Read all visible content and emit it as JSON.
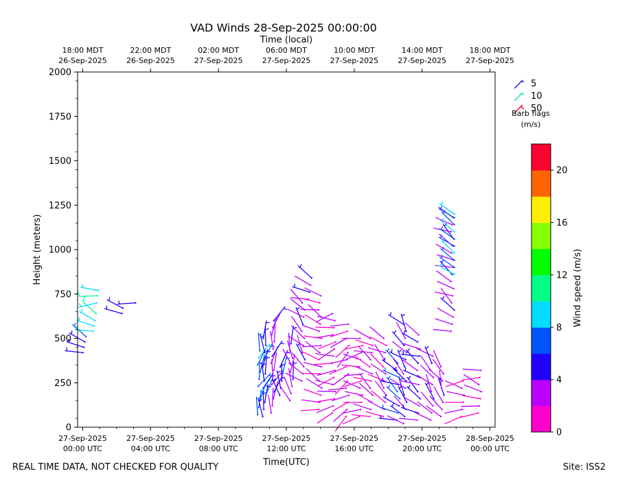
{
  "chart_data": {
    "type": "scatter",
    "title": "VAD Winds 28-Sep-2025 00:00:00",
    "top_axis_label": "Time (local)",
    "xlabel": "Time(UTC)",
    "ylabel": "Height (meters)",
    "ylim": [
      0,
      2000
    ],
    "xlim_hours_utc": [
      -0.3,
      24.3
    ],
    "yticks": [
      0,
      250,
      500,
      750,
      1000,
      1250,
      1500,
      1750,
      2000
    ],
    "bottom_ticks": [
      {
        "hour": 0,
        "line1": "27-Sep-2025",
        "line2": "00:00 UTC"
      },
      {
        "hour": 4,
        "line1": "27-Sep-2025",
        "line2": "04:00 UTC"
      },
      {
        "hour": 8,
        "line1": "27-Sep-2025",
        "line2": "08:00 UTC"
      },
      {
        "hour": 12,
        "line1": "27-Sep-2025",
        "line2": "12:00 UTC"
      },
      {
        "hour": 16,
        "line1": "27-Sep-2025",
        "line2": "16:00 UTC"
      },
      {
        "hour": 20,
        "line1": "27-Sep-2025",
        "line2": "20:00 UTC"
      },
      {
        "hour": 24,
        "line1": "28-Sep-2025",
        "line2": "00:00 UTC"
      }
    ],
    "top_ticks": [
      {
        "hour": 0,
        "line1": "18:00 MDT",
        "line2": "26-Sep-2025"
      },
      {
        "hour": 4,
        "line1": "22:00 MDT",
        "line2": "26-Sep-2025"
      },
      {
        "hour": 8,
        "line1": "02:00 MDT",
        "line2": "27-Sep-2025"
      },
      {
        "hour": 12,
        "line1": "06:00 MDT",
        "line2": "27-Sep-2025"
      },
      {
        "hour": 16,
        "line1": "10:00 MDT",
        "line2": "27-Sep-2025"
      },
      {
        "hour": 20,
        "line1": "14:00 MDT",
        "line2": "27-Sep-2025"
      },
      {
        "hour": 24,
        "line1": "18:00 MDT",
        "line2": "27-Sep-2025"
      }
    ],
    "barb_legend": {
      "title_line1": "Barb flags",
      "title_line2": "(m/s)",
      "entries": [
        {
          "label": "5",
          "color": "#1f1fd6"
        },
        {
          "label": "10",
          "color": "#19e6a0"
        },
        {
          "label": "50",
          "color": "#ff0033"
        }
      ]
    },
    "colorbar": {
      "label": "Wind speed (m/s)",
      "min": 0,
      "max": 22,
      "ticks": [
        0,
        4,
        8,
        12,
        16,
        20
      ],
      "colors": [
        "#ff00cc",
        "#bb00ff",
        "#2200ff",
        "#0055ff",
        "#00ddff",
        "#00ff88",
        "#00ff00",
        "#88ff00",
        "#ffee00",
        "#ff6600",
        "#ff0033"
      ]
    },
    "series": [
      {
        "hour": 0.1,
        "heights": [
          420,
          450,
          480,
          510
        ],
        "speed": 5,
        "dir": 300
      },
      {
        "hour": 0.7,
        "heights": [
          540,
          570,
          600,
          640
        ],
        "speed": 9,
        "dir": 300
      },
      {
        "hour": 0.9,
        "heights": [
          700,
          740,
          770
        ],
        "speed": 10,
        "dir": 280
      },
      {
        "hour": 2.4,
        "heights": [
          640,
          670
        ],
        "speed": 5,
        "dir": 310
      },
      {
        "hour": 3.2,
        "heights": [
          700
        ],
        "speed": 5,
        "dir": 290
      },
      {
        "hour": 10.4,
        "heights": [
          70,
          110,
          150,
          190,
          230,
          270,
          310,
          350,
          390,
          430
        ],
        "speed": 7,
        "dir": 20
      },
      {
        "hour": 10.7,
        "heights": [
          60,
          100,
          140,
          180,
          220,
          260,
          300,
          340,
          380,
          420,
          460,
          500
        ],
        "speed": 5,
        "dir": 10
      },
      {
        "hour": 11.2,
        "heights": [
          80,
          120,
          160,
          200,
          240,
          280,
          320,
          360,
          400,
          440,
          480,
          520,
          560,
          600
        ],
        "speed": 3,
        "dir": 15
      },
      {
        "hour": 11.7,
        "heights": [
          180,
          220,
          260,
          300,
          340
        ],
        "speed": 5,
        "dir": 0
      },
      {
        "hour": 12.3,
        "heights": [
          150,
          190,
          230,
          270,
          310,
          350,
          390,
          430,
          470
        ],
        "speed": 3,
        "dir": 350
      },
      {
        "hour": 13.0,
        "heights": [
          260,
          300,
          340,
          380,
          420,
          460,
          500,
          540,
          580,
          620,
          660,
          700
        ],
        "speed": 3,
        "dir": 320
      },
      {
        "hour": 13.4,
        "heights": [
          720,
          760,
          800,
          840
        ],
        "speed": 4,
        "dir": 300
      },
      {
        "hour": 14.0,
        "heights": [
          100,
          140,
          180,
          220,
          260,
          300,
          340,
          380,
          420,
          460,
          500,
          540,
          580,
          620,
          660,
          700,
          740
        ],
        "speed": 2,
        "dir": 290
      },
      {
        "hour": 14.8,
        "heights": [
          80,
          120,
          160,
          200,
          240,
          280,
          320,
          360,
          400,
          440,
          480,
          520,
          560,
          600,
          640
        ],
        "speed": 2,
        "dir": 260
      },
      {
        "hour": 15.6,
        "heights": [
          60,
          100,
          140,
          180,
          220,
          260,
          300,
          340,
          380,
          420,
          460,
          500,
          540,
          580
        ],
        "speed": 2,
        "dir": 240
      },
      {
        "hour": 16.4,
        "heights": [
          60,
          100,
          140,
          180,
          220,
          260,
          300,
          340,
          380,
          420,
          460,
          500
        ],
        "speed": 2,
        "dir": 270
      },
      {
        "hour": 17.0,
        "heights": [
          60,
          100,
          140,
          180,
          220,
          260,
          300,
          340,
          380,
          420,
          460,
          500
        ],
        "speed": 2,
        "dir": 300
      },
      {
        "hour": 17.8,
        "heights": [
          60,
          100,
          140,
          180,
          220,
          260,
          300,
          340,
          380,
          420,
          460,
          500
        ],
        "speed": 2,
        "dir": 310
      },
      {
        "hour": 18.6,
        "heights": [
          40,
          80,
          120,
          160,
          200,
          240,
          280,
          320,
          360
        ],
        "speed": 6,
        "dir": 300
      },
      {
        "hour": 19.0,
        "heights": [
          20,
          60,
          100,
          140,
          180,
          220,
          260,
          300,
          340,
          380,
          420,
          460,
          500,
          540,
          580
        ],
        "speed": 4,
        "dir": 320
      },
      {
        "hour": 19.8,
        "heights": [
          40,
          80,
          120,
          160,
          200,
          240,
          280,
          320,
          360,
          400,
          440,
          480,
          520
        ],
        "speed": 4,
        "dir": 300
      },
      {
        "hour": 20.6,
        "heights": [
          40,
          80,
          120,
          160,
          200,
          240,
          280,
          320,
          360,
          400
        ],
        "speed": 3,
        "dir": 320
      },
      {
        "hour": 21.2,
        "heights": [
          60,
          100,
          140,
          180,
          220,
          260,
          300,
          340
        ],
        "speed": 3,
        "dir": 330
      },
      {
        "hour": 21.8,
        "heights": [
          540,
          580,
          620,
          660,
          700,
          740,
          780,
          820,
          860,
          900,
          940,
          980,
          1020,
          1060,
          1100,
          1140,
          1180
        ],
        "speed": 3,
        "dir": 300
      },
      {
        "hour": 22.4,
        "heights": [
          60,
          100,
          140,
          180,
          220,
          260
        ],
        "speed": 2,
        "dir": 270
      },
      {
        "hour": 23.4,
        "heights": [
          80,
          120,
          160,
          200,
          240,
          280,
          320
        ],
        "speed": 2,
        "dir": 280
      }
    ],
    "upper_column": {
      "hour": 21.8,
      "heights": [
        860,
        900,
        940,
        980,
        1020,
        1060,
        1100,
        1140,
        1180,
        1200
      ],
      "speed": 8,
      "dir": 300
    }
  },
  "footer": {
    "left": "REAL TIME DATA, NOT CHECKED FOR QUALITY",
    "right": "Site: ISS2"
  }
}
